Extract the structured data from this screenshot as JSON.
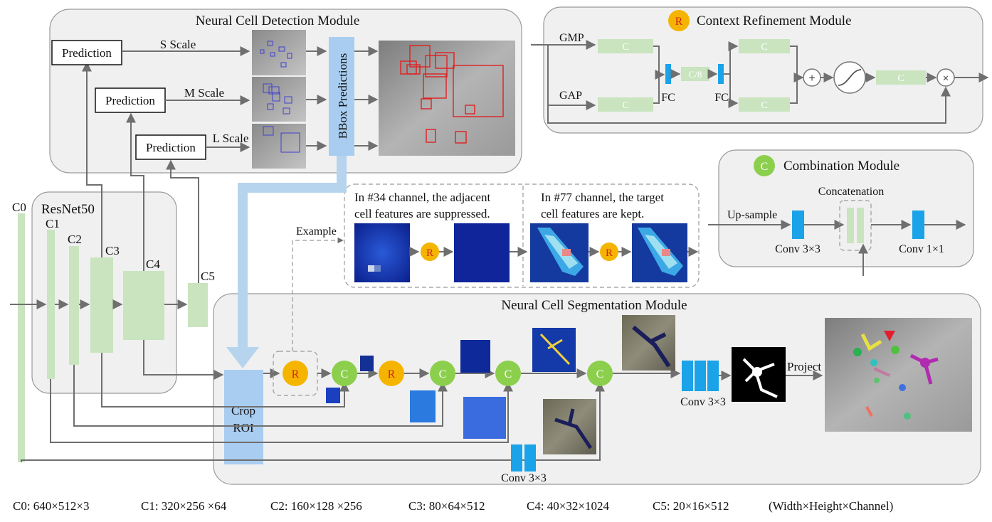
{
  "modules": {
    "detection": "Neural Cell Detection Module",
    "context": "Context Refinement Module",
    "combination": "Combination Module",
    "segmentation": "Neural Cell Segmentation Module",
    "resnet": "ResNet50"
  },
  "detection": {
    "prediction": "Prediction",
    "s_scale": "S Scale",
    "m_scale": "M Scale",
    "l_scale": "L Scale",
    "bbox": "BBox Predictions"
  },
  "context": {
    "badge": "R",
    "gmp": "GMP",
    "gap": "GAP",
    "c": "C",
    "c8": "C/8",
    "fc": "FC",
    "plus": "+",
    "times": "×"
  },
  "combination": {
    "badge": "C",
    "concatenation": "Concatenation",
    "upsample": "Up-sample",
    "conv33": "Conv 3×3",
    "conv11": "Conv 1×1"
  },
  "resnet": {
    "c0": "C0",
    "c1": "C1",
    "c2": "C2",
    "c3": "C3",
    "c4": "C4",
    "c5": "C5"
  },
  "example": {
    "label": "Example",
    "left_text_1": "In #34 channel, the adjacent",
    "left_text_2": "cell features are suppressed.",
    "right_text_1": "In #77 channel, the target",
    "right_text_2": "cell features are kept.",
    "r": "R"
  },
  "segmentation": {
    "crop": "Crop",
    "roi": "ROI",
    "r": "R",
    "c": "C",
    "conv33_a": "Conv 3×3",
    "conv33_b": "Conv 3×3",
    "project": "Project"
  },
  "footer": {
    "c0": "C0: 640×512×3",
    "c1": "C1: 320×256 ×64",
    "c2": "C2: 160×128 ×256",
    "c3": "C3: 80×64×512",
    "c4": "C4: 40×32×1024",
    "c5": "C5: 20×16×512",
    "legend": "(Width×Height×Channel)"
  },
  "colors": {
    "feature_green": "#c9e4bf",
    "conv_cyan": "#1aa3e8",
    "refine_orange": "#f5b400",
    "combine_green": "#8ccf4d",
    "bbox_red": "#e02020",
    "bbox_blue": "#3a3acc"
  }
}
